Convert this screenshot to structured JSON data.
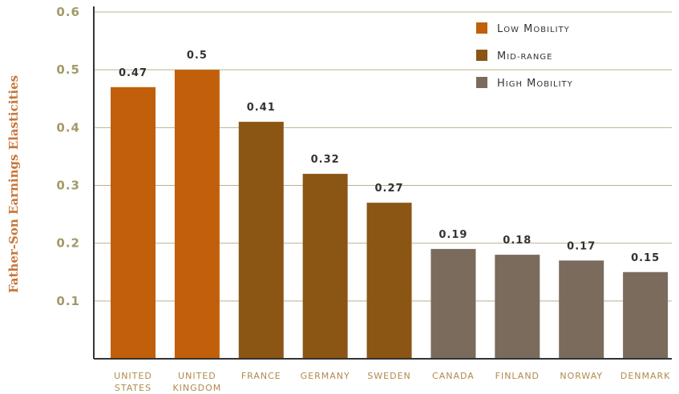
{
  "chart_data": {
    "type": "bar",
    "ylabel": "Father-Son Earnings Elasticities",
    "ylim": [
      0,
      0.6
    ],
    "yticks": [
      0.1,
      0.2,
      0.3,
      0.4,
      0.5,
      0.6
    ],
    "grid": true,
    "legend": "top-right",
    "categories": [
      [
        "UNITED",
        "STATES"
      ],
      [
        "UNITED",
        "KINGDOM"
      ],
      [
        "FRANCE"
      ],
      [
        "GERMANY"
      ],
      [
        "SWEDEN"
      ],
      [
        "CANADA"
      ],
      [
        "FINLAND"
      ],
      [
        "NORWAY"
      ],
      [
        "DENMARK"
      ]
    ],
    "values": [
      0.47,
      0.5,
      0.41,
      0.32,
      0.27,
      0.19,
      0.18,
      0.17,
      0.15
    ],
    "value_labels": [
      "0.47",
      "0.5",
      "0.41",
      "0.32",
      "0.27",
      "0.19",
      "0.18",
      "0.17",
      "0.15"
    ],
    "groups": [
      0,
      0,
      1,
      1,
      1,
      2,
      2,
      2,
      2
    ],
    "legend_entries": [
      {
        "label": "Low Mobility",
        "color": "#c15f0a"
      },
      {
        "label": "Mid-Range",
        "color": "#8b5513"
      },
      {
        "label": "High Mobility",
        "color": "#7a6b5d"
      }
    ]
  }
}
